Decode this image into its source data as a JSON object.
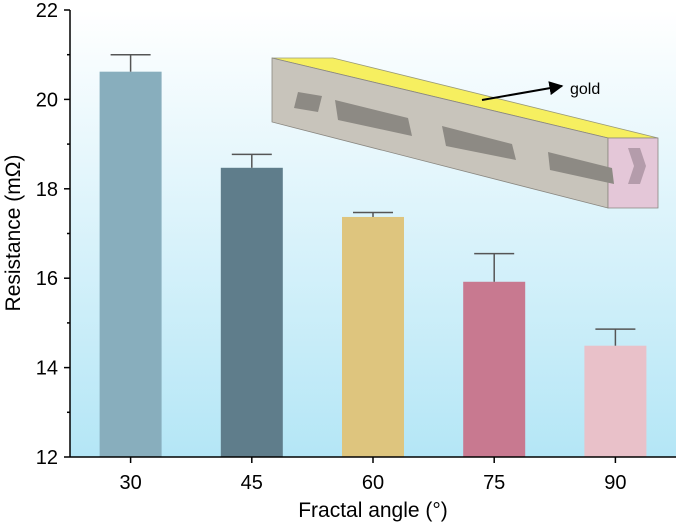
{
  "chart_data": {
    "type": "bar",
    "xlabel": "Fractal angle (°)",
    "ylabel": "Resistance (mΩ)",
    "categories": [
      "30",
      "45",
      "60",
      "75",
      "90"
    ],
    "values": [
      20.62,
      18.47,
      17.37,
      15.92,
      14.49
    ],
    "errors": [
      0.38,
      0.3,
      0.1,
      0.63,
      0.37
    ],
    "colors": [
      "#88aebd",
      "#5f7d8b",
      "#dec57e",
      "#c87990",
      "#e9c1c9"
    ],
    "ylim": [
      12,
      22
    ],
    "yticks": [
      "12",
      "14",
      "16",
      "18",
      "20",
      "22"
    ],
    "grid": false,
    "legend": "none",
    "annotation": "gold",
    "background": {
      "top": "#ffffff",
      "bottom": "#b4e6f6"
    },
    "inset": {
      "top_color": "#f6ef60",
      "body_color": "#c8c4bb",
      "end_color": "#e4c7d8"
    }
  }
}
